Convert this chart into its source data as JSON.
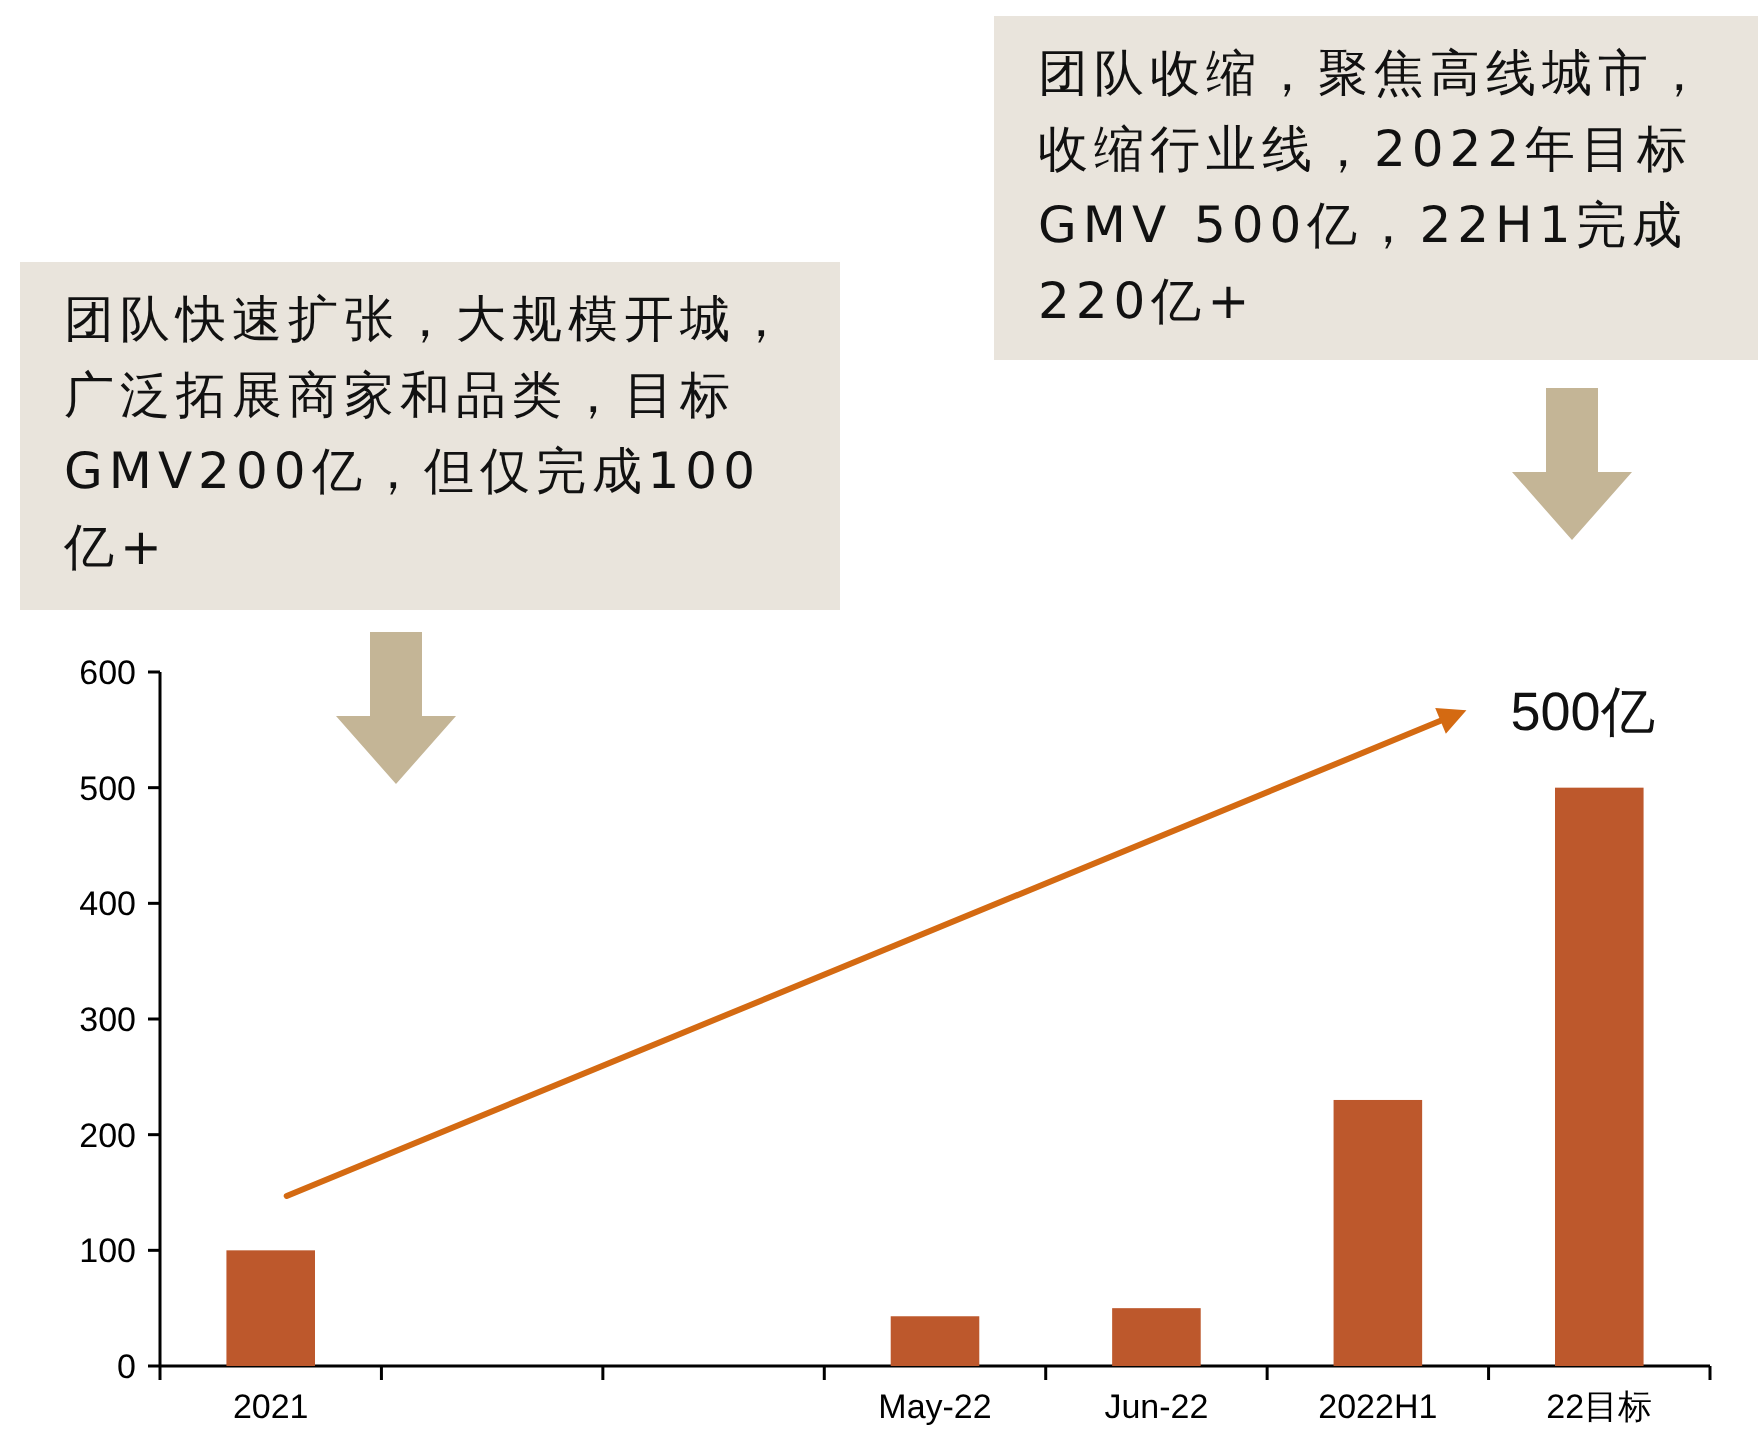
{
  "chart_data": {
    "type": "bar",
    "categories": [
      "2021",
      null,
      null,
      "May-22",
      "Jun-22",
      "2022H1",
      "22目标"
    ],
    "values": [
      100,
      null,
      null,
      43,
      50,
      230,
      500
    ],
    "color": "#bd582c",
    "ylim": [
      0,
      600
    ],
    "yticks": [
      0,
      100,
      200,
      300,
      400,
      500,
      600
    ],
    "annotations": [
      "团队快速扩张，大规模开城，广泛拓展商家和品类，目标GMV200亿，但仅完成100亿+",
      "团队收缩，聚焦高线城市，收缩行业线，2022年目标GMV 500亿，22H1完成220亿+",
      "500亿"
    ]
  }
}
